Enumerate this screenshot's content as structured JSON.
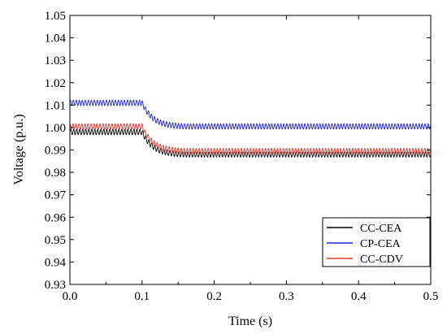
{
  "chart_data": {
    "type": "line",
    "title": "",
    "xlabel": "Time (s)",
    "ylabel": "Voltage (p.u.)",
    "xlim": [
      0.0,
      0.5
    ],
    "ylim": [
      0.93,
      1.05
    ],
    "xticks": [
      "0.0",
      "0.1",
      "0.2",
      "0.3",
      "0.4",
      "0.5"
    ],
    "yticks": [
      "0.93",
      "0.94",
      "0.95",
      "0.96",
      "0.97",
      "0.98",
      "0.99",
      "1.00",
      "1.01",
      "1.02",
      "1.03",
      "1.04",
      "1.05"
    ],
    "grid": false,
    "legend_position": "bottom-right",
    "series": [
      {
        "name": "CC-CEA",
        "color": "#000000",
        "before": 0.998,
        "after": 0.988,
        "ripple": 0.0012
      },
      {
        "name": "CP-CEA",
        "color": "#1f1fe0",
        "before": 1.011,
        "after": 1.0005,
        "ripple": 0.0012
      },
      {
        "name": "CC-CDV",
        "color": "#e0362c",
        "before": 1.0005,
        "after": 0.9895,
        "ripple": 0.0012
      }
    ],
    "step_time": 0.1,
    "settle_time": 0.14
  }
}
